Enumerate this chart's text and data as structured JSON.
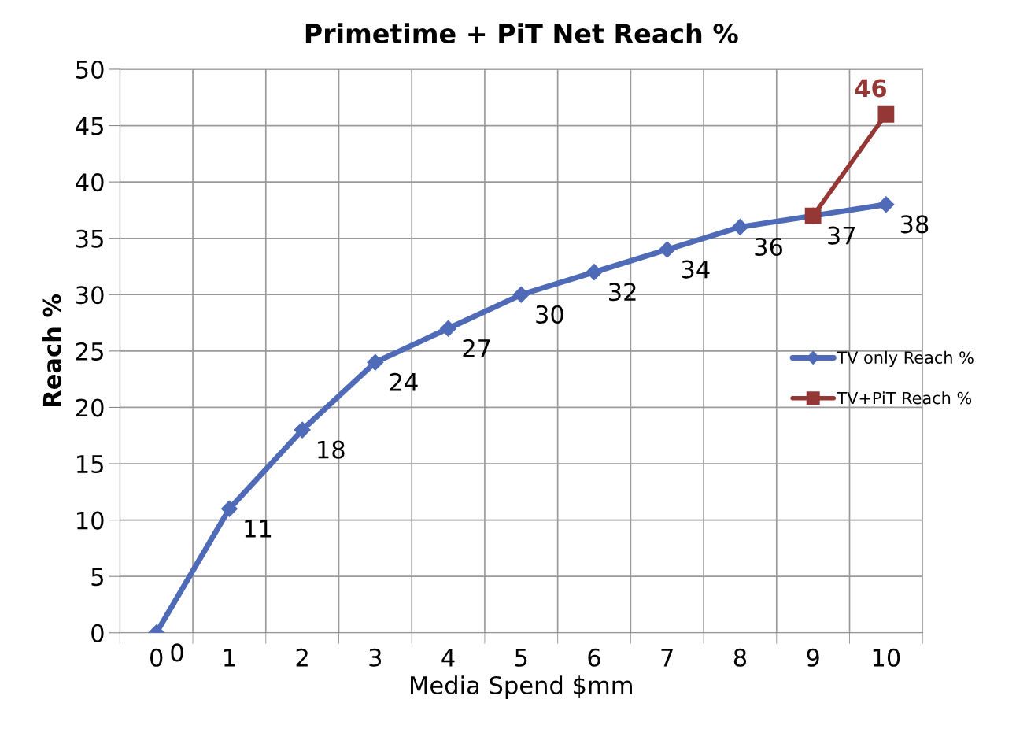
{
  "chart_data": {
    "type": "line",
    "title": "Primetime + PiT Net Reach %",
    "xlabel": "Media Spend $mm",
    "ylabel": "Reach %",
    "categories": [
      "0",
      "1",
      "2",
      "3",
      "4",
      "5",
      "6",
      "7",
      "8",
      "9",
      "10"
    ],
    "ylim": [
      0,
      50
    ],
    "yticks": [
      0,
      5,
      10,
      15,
      20,
      25,
      30,
      35,
      40,
      45,
      50
    ],
    "grid": true,
    "legend": "right",
    "series": [
      {
        "name": "TV only Reach %",
        "color": "#4f6bb8",
        "marker": "diamond",
        "values": [
          0,
          11,
          18,
          24,
          27,
          30,
          32,
          34,
          36,
          37,
          38
        ],
        "value_labels": [
          "0",
          "11",
          "18",
          "24",
          "27",
          "30",
          "32",
          "34",
          "36",
          "37",
          "38"
        ]
      },
      {
        "name": "TV+PiT Reach %",
        "color": "#953735",
        "marker": "square",
        "values": [
          null,
          null,
          null,
          null,
          null,
          null,
          null,
          null,
          null,
          37,
          46
        ],
        "value_labels": [
          null,
          null,
          null,
          null,
          null,
          null,
          null,
          null,
          null,
          null,
          "46"
        ]
      }
    ]
  }
}
